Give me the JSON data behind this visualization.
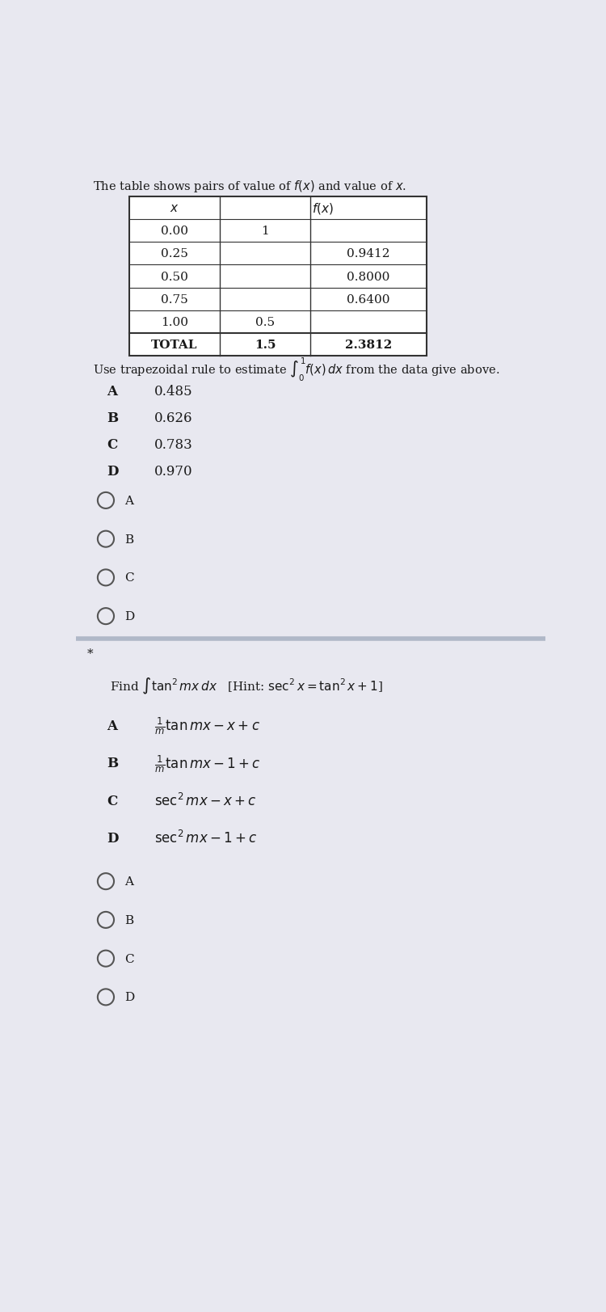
{
  "bg_color": "#e8e8f0",
  "intro_text": "The table shows pairs of value of $f(x)$ and value of $x$.",
  "table_data": [
    [
      "0.00",
      "1",
      ""
    ],
    [
      "0.25",
      "",
      "0.9412"
    ],
    [
      "0.50",
      "",
      "0.8000"
    ],
    [
      "0.75",
      "",
      "0.6400"
    ],
    [
      "1.00",
      "0.5",
      ""
    ],
    [
      "TOTAL",
      "1.5",
      "2.3812"
    ]
  ],
  "question1": "Use trapezoidal rule to estimate $\\int_0^1 f(x)\\,dx$ from the data give above.",
  "options1": [
    [
      "A",
      "0.485"
    ],
    [
      "B",
      "0.626"
    ],
    [
      "C",
      "0.783"
    ],
    [
      "D",
      "0.970"
    ]
  ],
  "radio_labels1": [
    "A",
    "B",
    "C",
    "D"
  ],
  "divider_color": "#b0b8c8",
  "asterisk": "*",
  "question2_part1": "Find $\\int \\tan^2 mx\\,dx$",
  "question2_part2": "[Hint: $\\sec^2 x = \\tan^2 x+1$]",
  "options2_labels": [
    "A",
    "B",
    "C",
    "D"
  ],
  "options2_vals": [
    "$\\frac{1}{m}\\tan mx - x + c$",
    "$\\frac{1}{m}\\tan mx - 1 + c$",
    "$\\sec^2 mx - x + c$",
    "$\\sec^2 mx - 1 + c$"
  ],
  "radio_labels2": [
    "A",
    "B",
    "C",
    "D"
  ]
}
